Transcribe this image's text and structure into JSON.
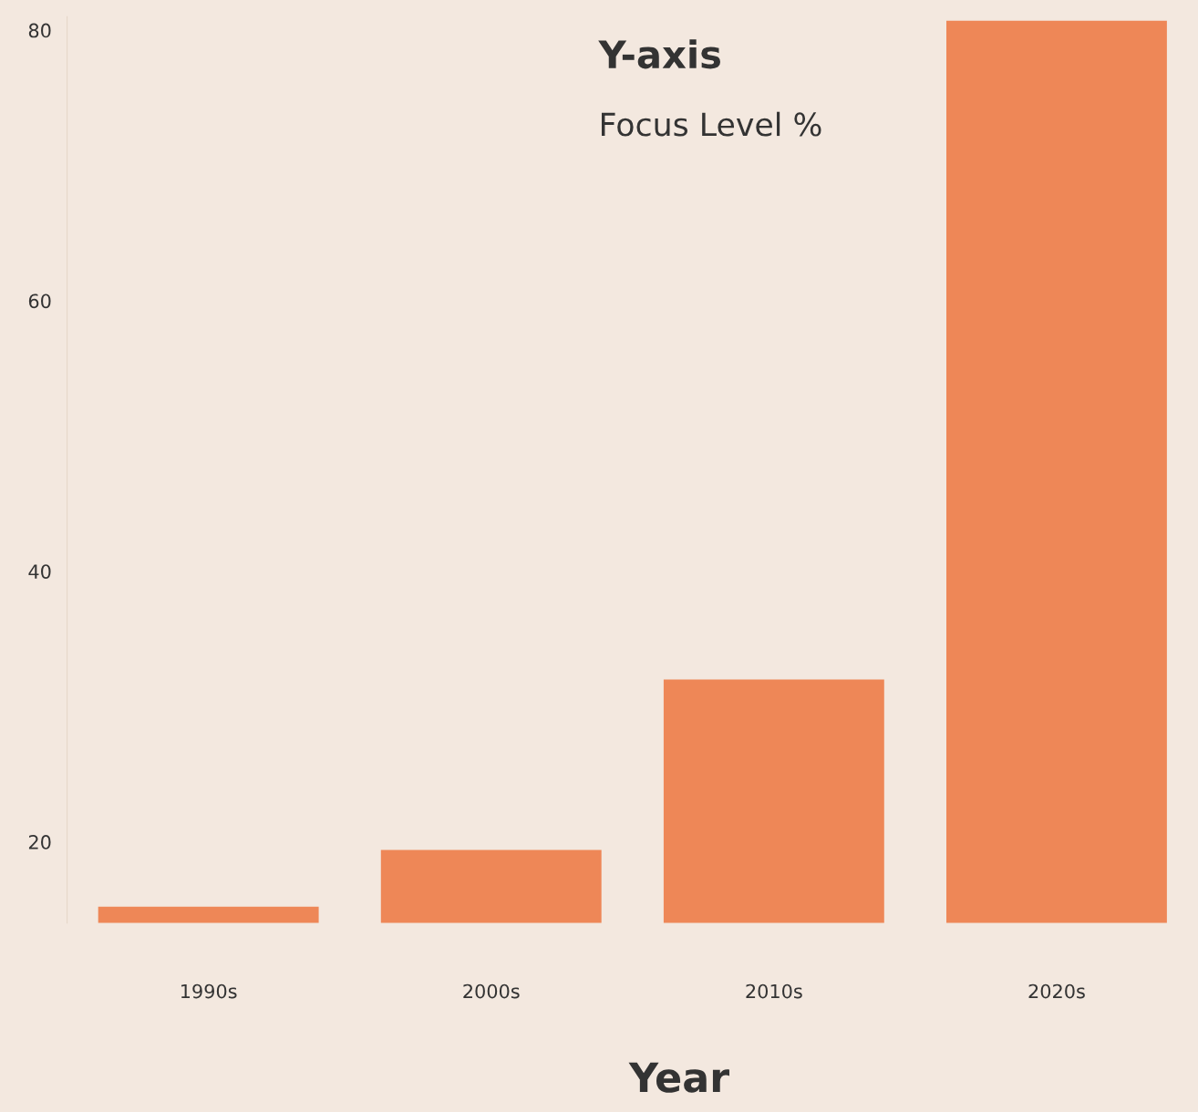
{
  "chart_data": {
    "type": "bar",
    "title": "Y-axis",
    "ylabel": "Focus Level %",
    "xlabel": "Year",
    "categories": [
      "1990s",
      "2000s",
      "2010s",
      "2020s"
    ],
    "values": [
      15.2,
      19.4,
      32.0,
      80.7
    ],
    "color": "#ee8757",
    "ylim": [
      14,
      81
    ],
    "yticks": [
      20,
      40,
      60,
      80
    ],
    "grid": false,
    "legend": false
  }
}
